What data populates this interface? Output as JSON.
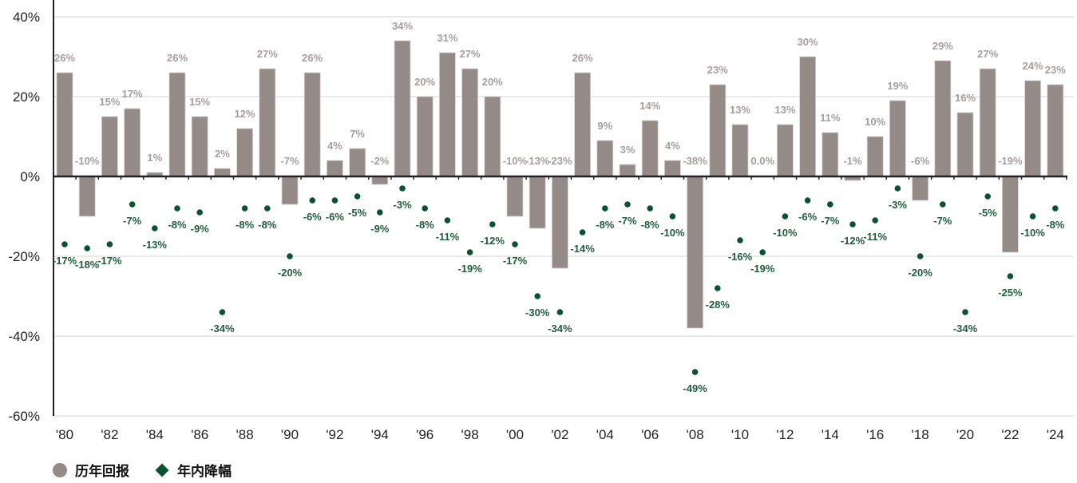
{
  "chart_data": {
    "type": "bar",
    "title": "",
    "xlabel": "",
    "ylabel": "",
    "ylim": [
      -60,
      40
    ],
    "yticks": [
      "40%",
      "20%",
      "0%",
      "-20%",
      "-40%",
      "-60%"
    ],
    "ytick_values": [
      40,
      20,
      0,
      -20,
      -40,
      -60
    ],
    "grid": true,
    "categories": [
      1980,
      1981,
      1982,
      1983,
      1984,
      1985,
      1986,
      1987,
      1988,
      1989,
      1990,
      1991,
      1992,
      1993,
      1994,
      1995,
      1996,
      1997,
      1998,
      1999,
      2000,
      2001,
      2002,
      2003,
      2004,
      2005,
      2006,
      2007,
      2008,
      2009,
      2010,
      2011,
      2012,
      2013,
      2014,
      2015,
      2016,
      2017,
      2018,
      2019,
      2020,
      2021,
      2022,
      2023,
      2024
    ],
    "xtick_labels": [
      "'80",
      "'82",
      "'84",
      "'86",
      "'88",
      "'90",
      "'92",
      "'94",
      "'96",
      "'98",
      "'00",
      "'02",
      "'04",
      "'06",
      "'08",
      "'10",
      "'12",
      "'14",
      "'16",
      "'18",
      "'20",
      "'22",
      "'24"
    ],
    "series": [
      {
        "name": "历年回报",
        "type": "bar",
        "color": "#948a88",
        "label_color": "#a59e9c",
        "values": [
          26,
          -10,
          15,
          17,
          1,
          26,
          15,
          2,
          12,
          27,
          -7,
          26,
          4,
          7,
          -2,
          34,
          20,
          31,
          27,
          20,
          -10,
          -13,
          -23,
          26,
          9,
          3,
          14,
          4,
          -38,
          23,
          13,
          0.0,
          13,
          30,
          11,
          -1,
          10,
          19,
          -6,
          29,
          16,
          27,
          -19,
          24,
          23
        ],
        "labels": [
          "26%",
          "-10%",
          "15%",
          "17%",
          "1%",
          "26%",
          "15%",
          "2%",
          "12%",
          "27%",
          "-7%",
          "26%",
          "4%",
          "7%",
          "-2%",
          "34%",
          "20%",
          "31%",
          "27%",
          "20%",
          "-10%",
          "-13%",
          "-23%",
          "26%",
          "9%",
          "3%",
          "14%",
          "4%",
          "-38%",
          "23%",
          "13%",
          "0.0%",
          "13%",
          "30%",
          "11%",
          "-1%",
          "10%",
          "19%",
          "-6%",
          "29%",
          "16%",
          "27%",
          "-19%",
          "24%",
          "23%"
        ]
      },
      {
        "name": "年内降幅",
        "type": "scatter",
        "color": "#0b5231",
        "label_color": "#1f5c3d",
        "values": [
          -17,
          -18,
          -17,
          -7,
          -13,
          -8,
          -9,
          -34,
          -8,
          -8,
          -20,
          -6,
          -6,
          -5,
          -9,
          -3,
          -8,
          -11,
          -19,
          -12,
          -17,
          -30,
          -34,
          -14,
          -8,
          -7,
          -8,
          -10,
          -49,
          -28,
          -16,
          -19,
          -10,
          -6,
          -7,
          -12,
          -11,
          -3,
          -20,
          -7,
          -34,
          -5,
          -25,
          -10,
          -8
        ],
        "labels": [
          "-17%",
          "-18%",
          "-17%",
          "-7%",
          "-13%",
          "-8%",
          "-9%",
          "-34%",
          "-8%",
          "-8%",
          "-20%",
          "-6%",
          "-6%",
          "-5%",
          "-9%",
          "-3%",
          "-8%",
          "-11%",
          "-19%",
          "-12%",
          "-17%",
          "-30%",
          "-34%",
          "-14%",
          "-8%",
          "-7%",
          "-8%",
          "-10%",
          "-49%",
          "-28%",
          "-16%",
          "-19%",
          "-10%",
          "-6%",
          "-7%",
          "-12%",
          "-11%",
          "-3%",
          "-20%",
          "-7%",
          "-34%",
          "-5%",
          "-25%",
          "-10%",
          "-8%"
        ]
      }
    ],
    "legend": {
      "placement": "bottom-left",
      "items": [
        {
          "label": "历年回报",
          "marker": "circle",
          "color": "#948a88"
        },
        {
          "label": "年内降幅",
          "marker": "diamond",
          "color": "#0b5231"
        }
      ]
    }
  }
}
